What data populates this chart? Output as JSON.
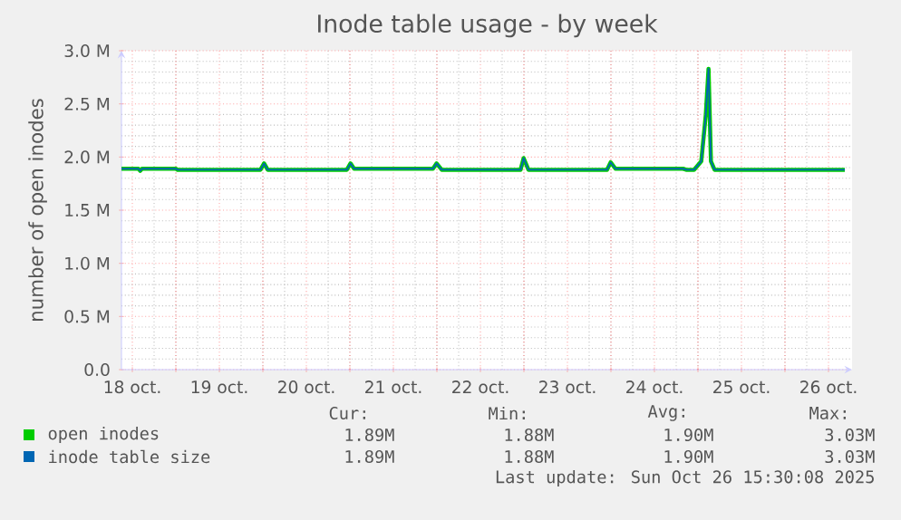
{
  "chart_data": {
    "type": "line",
    "title": "Inode table usage - by week",
    "ylabel": "number of open inodes",
    "x": [
      "2025-10-18T09:00",
      "2025-10-18T13:40",
      "2025-10-18T14:10",
      "2025-10-18T14:40",
      "2025-10-19T00:00",
      "2025-10-19T00:30",
      "2025-10-19T23:20",
      "2025-10-20T00:20",
      "2025-10-20T01:20",
      "2025-10-20T23:10",
      "2025-10-21T00:10",
      "2025-10-21T01:10",
      "2025-10-21T22:55",
      "2025-10-21T23:55",
      "2025-10-22T01:20",
      "2025-10-22T23:05",
      "2025-10-22T23:55",
      "2025-10-23T01:15",
      "2025-10-23T22:55",
      "2025-10-23T23:55",
      "2025-10-24T01:15",
      "2025-10-24T19:55",
      "2025-10-24T20:45",
      "2025-10-24T22:55",
      "2025-10-25T00:55",
      "2025-10-25T02:10",
      "2025-10-25T02:55",
      "2025-10-25T03:35",
      "2025-10-25T04:35",
      "2025-10-26T16:30"
    ],
    "series": [
      {
        "name": "open inodes",
        "color": "#00cc00",
        "values": [
          1890000,
          1890000,
          1870000,
          1890000,
          1890000,
          1880000,
          1880000,
          1940000,
          1880000,
          1880000,
          1940000,
          1890000,
          1890000,
          1940000,
          1880000,
          1880000,
          1990000,
          1880000,
          1880000,
          1950000,
          1890000,
          1890000,
          1880000,
          1880000,
          1960000,
          2400000,
          2830000,
          1960000,
          1880000,
          1880000
        ]
      },
      {
        "name": "inode table size",
        "color": "#0066b3",
        "values": [
          1890000,
          1890000,
          1870000,
          1890000,
          1890000,
          1880000,
          1880000,
          1940000,
          1880000,
          1880000,
          1940000,
          1890000,
          1890000,
          1940000,
          1880000,
          1880000,
          1990000,
          1880000,
          1880000,
          1950000,
          1890000,
          1890000,
          1880000,
          1880000,
          1960000,
          2400000,
          2830000,
          1960000,
          1880000,
          1880000
        ]
      }
    ],
    "xlim": [
      "2025-10-18T09:00",
      "2025-10-26T18:30"
    ],
    "xticks": [
      {
        "value": "2025-10-18T12:00",
        "label": "18 oct."
      },
      {
        "value": "2025-10-19T12:00",
        "label": "19 oct."
      },
      {
        "value": "2025-10-20T12:00",
        "label": "20 oct."
      },
      {
        "value": "2025-10-21T12:00",
        "label": "21 oct."
      },
      {
        "value": "2025-10-22T12:00",
        "label": "22 oct."
      },
      {
        "value": "2025-10-23T12:00",
        "label": "23 oct."
      },
      {
        "value": "2025-10-24T12:00",
        "label": "24 oct."
      },
      {
        "value": "2025-10-25T12:00",
        "label": "25 oct."
      },
      {
        "value": "2025-10-26T12:00",
        "label": "26 oct."
      },
      {
        "value": "2025-10-19T00:00",
        "label": null
      },
      {
        "value": "2025-10-20T00:00",
        "label": null
      },
      {
        "value": "2025-10-21T00:00",
        "label": null
      },
      {
        "value": "2025-10-22T00:00",
        "label": null
      },
      {
        "value": "2025-10-23T00:00",
        "label": null
      },
      {
        "value": "2025-10-24T00:00",
        "label": null
      },
      {
        "value": "2025-10-25T00:00",
        "label": null
      },
      {
        "value": "2025-10-26T00:00",
        "label": null
      }
    ],
    "ylim": [
      0,
      3000000
    ],
    "yticks": [
      {
        "value": 0,
        "label": "0.0"
      },
      {
        "value": 500000,
        "label": "0.5 M"
      },
      {
        "value": 1000000,
        "label": "1.0 M"
      },
      {
        "value": 1500000,
        "label": "1.5 M"
      },
      {
        "value": 2000000,
        "label": "2.0 M"
      },
      {
        "value": 2500000,
        "label": "2.5 M"
      },
      {
        "value": 3000000,
        "label": "3.0 M"
      }
    ],
    "grid": true,
    "legend": "bottom",
    "annotations": [
      "Cur:",
      "Min:",
      "Avg:",
      "Max:",
      "1.89M",
      "1.88M",
      "1.90M",
      "3.03M",
      "1.89M",
      "1.88M",
      "1.90M",
      "3.03M",
      "Last update: Sun Oct 26 15:30:08 2025"
    ]
  }
}
